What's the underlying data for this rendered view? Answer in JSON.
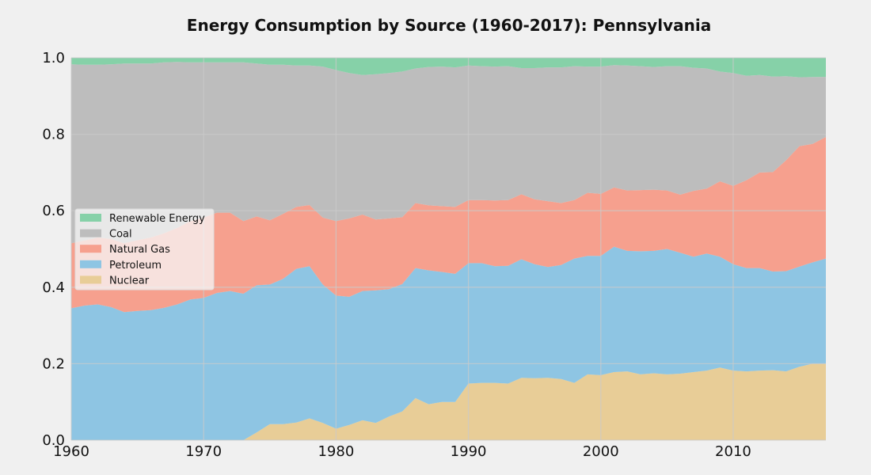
{
  "chart_data": {
    "type": "area",
    "stacked": true,
    "normalized": true,
    "title": "Energy Consumption by Source (1960-2017): Pennsylvania",
    "xlabel": "",
    "ylabel": "",
    "xlim": [
      1960,
      2017
    ],
    "ylim": [
      0,
      1
    ],
    "x_ticks": [
      "1960",
      "1970",
      "1980",
      "1990",
      "2000",
      "2010"
    ],
    "y_ticks": [
      "0.0",
      "0.2",
      "0.4",
      "0.6",
      "0.8",
      "1.0"
    ],
    "grid": true,
    "legend_position": "center-left",
    "x": [
      1960,
      1961,
      1962,
      1963,
      1964,
      1965,
      1966,
      1967,
      1968,
      1969,
      1970,
      1971,
      1972,
      1973,
      1974,
      1975,
      1976,
      1977,
      1978,
      1979,
      1980,
      1981,
      1982,
      1983,
      1984,
      1985,
      1986,
      1987,
      1988,
      1989,
      1990,
      1991,
      1992,
      1993,
      1994,
      1995,
      1996,
      1997,
      1998,
      1999,
      2000,
      2001,
      2002,
      2003,
      2004,
      2005,
      2006,
      2007,
      2008,
      2009,
      2010,
      2011,
      2012,
      2013,
      2014,
      2015,
      2016,
      2017
    ],
    "series": [
      {
        "name": "Nuclear",
        "color": "#e8cd97",
        "values": [
          0,
          0,
          0,
          0,
          0,
          0,
          0,
          0,
          0,
          0,
          0,
          0,
          0,
          0,
          0.02,
          0.042,
          0.042,
          0.046,
          0.057,
          0.045,
          0.03,
          0.04,
          0.052,
          0.045,
          0.062,
          0.075,
          0.11,
          0.094,
          0.1,
          0.1,
          0.148,
          0.15,
          0.15,
          0.148,
          0.163,
          0.162,
          0.163,
          0.16,
          0.15,
          0.172,
          0.17,
          0.178,
          0.18,
          0.172,
          0.175,
          0.172,
          0.174,
          0.178,
          0.182,
          0.19,
          0.182,
          0.18,
          0.182,
          0.183,
          0.18,
          0.192,
          0.2,
          0.2
        ]
      },
      {
        "name": "Petroleum",
        "color": "#8ec5e3",
        "values": [
          0.345,
          0.352,
          0.355,
          0.348,
          0.335,
          0.338,
          0.34,
          0.346,
          0.355,
          0.368,
          0.372,
          0.385,
          0.39,
          0.383,
          0.385,
          0.365,
          0.38,
          0.402,
          0.398,
          0.362,
          0.348,
          0.335,
          0.338,
          0.347,
          0.333,
          0.333,
          0.34,
          0.35,
          0.34,
          0.335,
          0.315,
          0.313,
          0.305,
          0.308,
          0.31,
          0.298,
          0.29,
          0.298,
          0.325,
          0.31,
          0.312,
          0.328,
          0.315,
          0.322,
          0.32,
          0.328,
          0.316,
          0.302,
          0.306,
          0.29,
          0.278,
          0.27,
          0.268,
          0.258,
          0.262,
          0.262,
          0.265,
          0.275
        ]
      },
      {
        "name": "Natural Gas",
        "color": "#f6a08e",
        "values": [
          0.17,
          0.17,
          0.175,
          0.178,
          0.18,
          0.185,
          0.19,
          0.195,
          0.2,
          0.205,
          0.21,
          0.21,
          0.205,
          0.19,
          0.18,
          0.168,
          0.17,
          0.162,
          0.16,
          0.175,
          0.195,
          0.205,
          0.2,
          0.185,
          0.185,
          0.175,
          0.17,
          0.17,
          0.172,
          0.175,
          0.165,
          0.165,
          0.172,
          0.172,
          0.17,
          0.17,
          0.172,
          0.162,
          0.153,
          0.165,
          0.162,
          0.155,
          0.158,
          0.16,
          0.16,
          0.153,
          0.152,
          0.172,
          0.17,
          0.197,
          0.205,
          0.23,
          0.25,
          0.26,
          0.29,
          0.315,
          0.31,
          0.318
        ]
      },
      {
        "name": "Coal",
        "color": "#bdbdbd",
        "values": [
          0.468,
          0.46,
          0.452,
          0.457,
          0.47,
          0.462,
          0.455,
          0.447,
          0.434,
          0.415,
          0.406,
          0.393,
          0.393,
          0.415,
          0.4,
          0.407,
          0.39,
          0.37,
          0.365,
          0.395,
          0.395,
          0.38,
          0.365,
          0.38,
          0.38,
          0.381,
          0.352,
          0.362,
          0.365,
          0.365,
          0.352,
          0.35,
          0.35,
          0.35,
          0.33,
          0.343,
          0.35,
          0.355,
          0.35,
          0.33,
          0.333,
          0.32,
          0.327,
          0.324,
          0.321,
          0.325,
          0.336,
          0.322,
          0.314,
          0.287,
          0.295,
          0.273,
          0.255,
          0.25,
          0.22,
          0.18,
          0.175,
          0.157
        ]
      },
      {
        "name": "Renewable Energy",
        "color": "#86d1a8",
        "values": [
          0.017,
          0.018,
          0.018,
          0.017,
          0.015,
          0.015,
          0.015,
          0.012,
          0.011,
          0.012,
          0.012,
          0.012,
          0.012,
          0.012,
          0.015,
          0.018,
          0.018,
          0.02,
          0.02,
          0.023,
          0.032,
          0.04,
          0.045,
          0.043,
          0.04,
          0.036,
          0.028,
          0.024,
          0.023,
          0.025,
          0.02,
          0.022,
          0.023,
          0.022,
          0.027,
          0.027,
          0.025,
          0.025,
          0.022,
          0.023,
          0.023,
          0.019,
          0.02,
          0.022,
          0.024,
          0.022,
          0.022,
          0.026,
          0.028,
          0.033,
          0.04,
          0.047,
          0.045,
          0.049,
          0.048,
          0.051,
          0.05,
          0.05
        ]
      }
    ],
    "legend_order": [
      "Renewable Energy",
      "Coal",
      "Natural Gas",
      "Petroleum",
      "Nuclear"
    ]
  },
  "colors": {
    "background": "#f0f0f0",
    "grid": "#cbcbcb"
  }
}
